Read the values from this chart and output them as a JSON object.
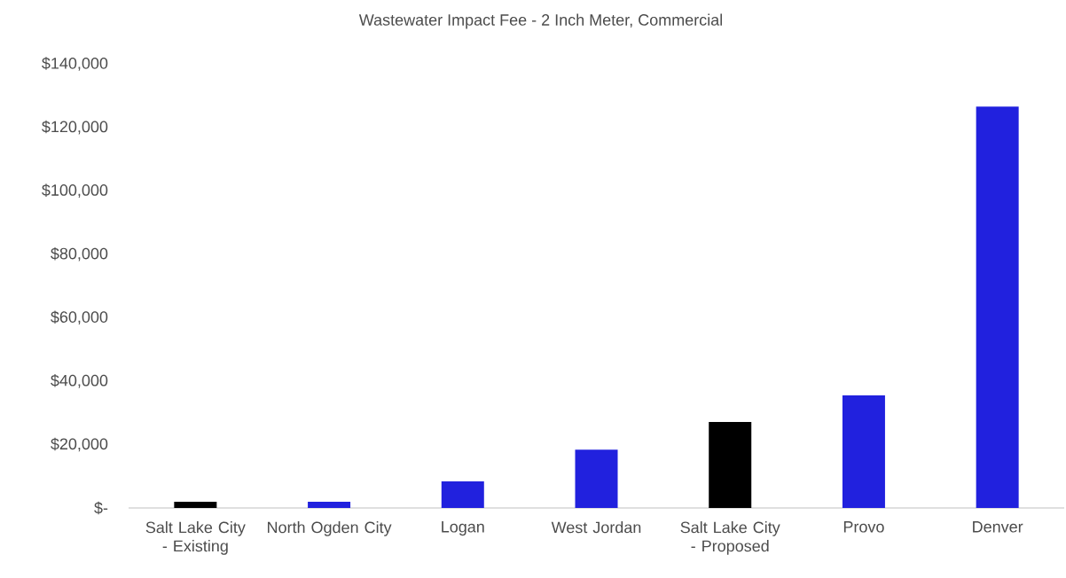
{
  "chart_data": {
    "type": "bar",
    "title": "Wastewater Impact Fee - 2 Inch Meter, Commercial",
    "categories": [
      "Salt Lake City - Existing",
      "North Ogden City",
      "Logan",
      "West Jordan",
      "Salt Lake City - Proposed",
      "Provo",
      "Denver"
    ],
    "values": [
      1950,
      1950,
      8400,
      18400,
      27100,
      35500,
      126500
    ],
    "colors": [
      "#000000",
      "#2121de",
      "#2121de",
      "#2121de",
      "#000000",
      "#2121de",
      "#2121de"
    ],
    "ylim": [
      0,
      140000
    ],
    "yticks": [
      {
        "value": 0,
        "label": "$-"
      },
      {
        "value": 20000,
        "label": "$20,000"
      },
      {
        "value": 40000,
        "label": "$40,000"
      },
      {
        "value": 60000,
        "label": "$60,000"
      },
      {
        "value": 80000,
        "label": "$80,000"
      },
      {
        "value": 100000,
        "label": "$100,000"
      },
      {
        "value": 120000,
        "label": "$120,000"
      },
      {
        "value": 140000,
        "label": "$140,000"
      }
    ]
  }
}
